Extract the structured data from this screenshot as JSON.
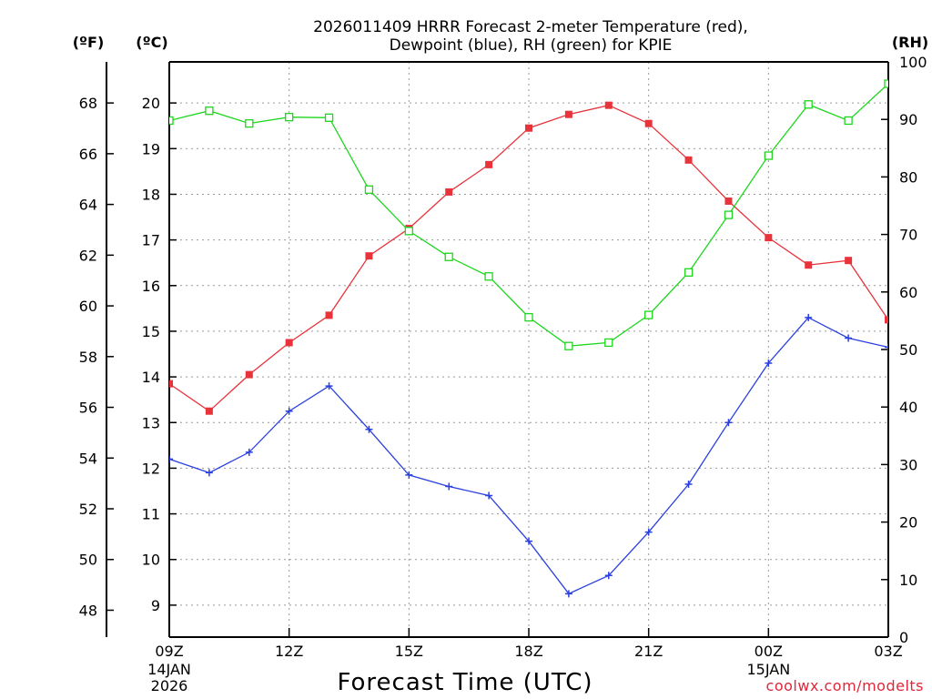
{
  "chart_data": {
    "type": "line",
    "title_line1": "2026011409 HRRR Forecast 2-meter Temperature (red),",
    "title_line2": "Dewpoint (blue), RH (green) for KPIE",
    "xlabel": "Forecast Time (UTC)",
    "credit": "coolwx.com/modelts",
    "units": {
      "fahrenheit": "(ºF)",
      "celsius": "(ºC)",
      "rh": "(RH)"
    },
    "colors": {
      "temperature": "#e8333b",
      "dewpoint": "#2a3fe0",
      "rh": "#1ed61e",
      "grid": "#999999"
    },
    "x_hours": [
      0,
      1,
      2,
      3,
      4,
      5,
      6,
      7,
      8,
      9,
      10,
      11,
      12,
      13,
      14,
      15,
      16,
      17,
      18
    ],
    "x_ticks": [
      {
        "hour": 0,
        "label": "09Z",
        "sub1": "14JAN",
        "sub2": "2026"
      },
      {
        "hour": 3,
        "label": "12Z"
      },
      {
        "hour": 6,
        "label": "15Z"
      },
      {
        "hour": 9,
        "label": "18Z"
      },
      {
        "hour": 12,
        "label": "21Z"
      },
      {
        "hour": 15,
        "label": "00Z",
        "sub1": "15JAN"
      },
      {
        "hour": 18,
        "label": "03Z"
      }
    ],
    "celsius_range": [
      8.3,
      20.9
    ],
    "celsius_ticks": [
      9,
      10,
      11,
      12,
      13,
      14,
      15,
      16,
      17,
      18,
      19,
      20
    ],
    "fahrenheit_ticks": [
      48,
      50,
      52,
      54,
      56,
      58,
      60,
      62,
      64,
      66,
      68
    ],
    "rh_range": [
      0,
      100
    ],
    "rh_ticks": [
      0,
      10,
      20,
      30,
      40,
      50,
      60,
      70,
      80,
      90,
      100
    ],
    "series": [
      {
        "name": "Temperature",
        "key": "temperature",
        "axis": "celsius",
        "marker": "square-filled",
        "values": [
          13.85,
          13.25,
          14.05,
          14.75,
          15.35,
          16.65,
          17.25,
          18.05,
          18.65,
          19.45,
          19.75,
          19.95,
          19.55,
          18.75,
          17.85,
          17.05,
          16.45,
          16.55,
          15.25
        ]
      },
      {
        "name": "Dewpoint",
        "key": "dewpoint",
        "axis": "celsius",
        "marker": "plus",
        "values": [
          12.2,
          11.9,
          12.35,
          13.25,
          13.8,
          12.85,
          11.85,
          11.6,
          11.4,
          10.4,
          9.25,
          9.65,
          10.6,
          11.65,
          13.0,
          14.3,
          15.3,
          14.85,
          14.65
        ]
      },
      {
        "name": "RH",
        "key": "rh",
        "axis": "rh",
        "marker": "square-open",
        "values": [
          89.8,
          91.5,
          89.3,
          90.4,
          90.3,
          77.8,
          70.6,
          66.1,
          62.7,
          55.6,
          50.6,
          51.2,
          56.0,
          63.4,
          73.4,
          83.7,
          92.6,
          89.8,
          96.2
        ]
      }
    ]
  }
}
